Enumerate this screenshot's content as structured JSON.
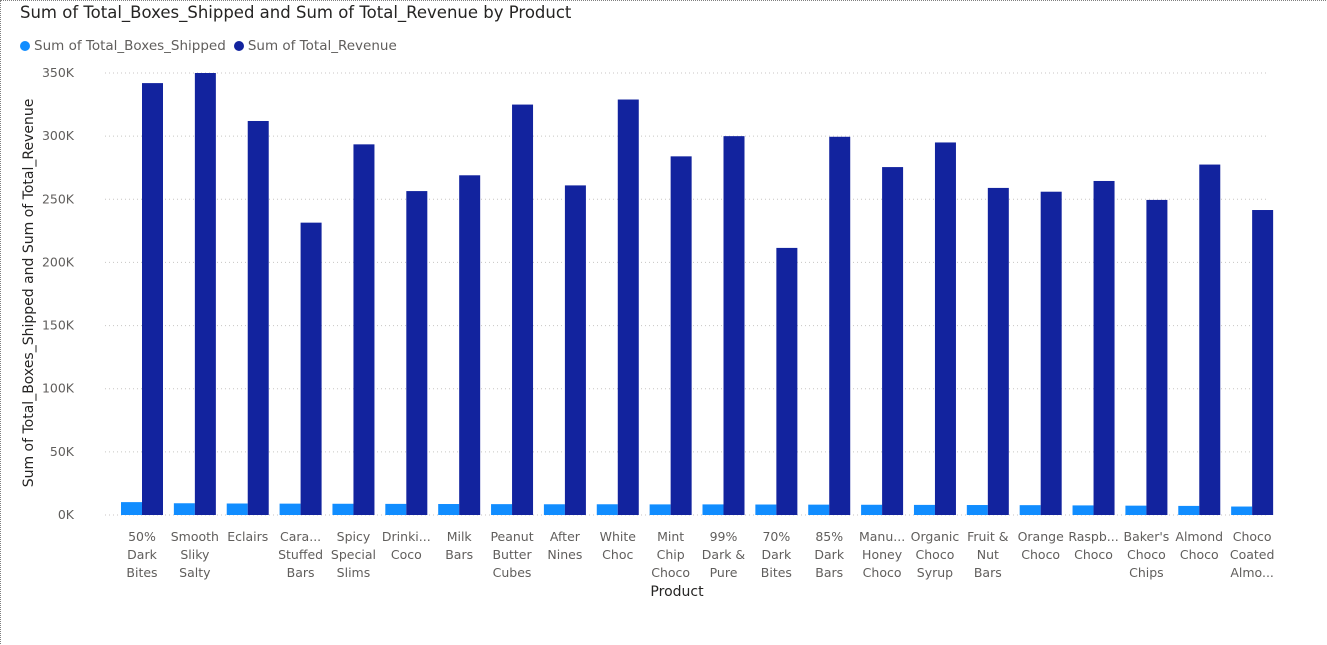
{
  "chart_data": {
    "type": "bar",
    "title": "Sum of Total_Boxes_Shipped and Sum of Total_Revenue by Product",
    "xlabel": "Product",
    "ylabel": "Sum of Total_Boxes_Shipped and Sum of Total_Revenue",
    "ylim": [
      0,
      350000
    ],
    "yticks": [
      0,
      50000,
      100000,
      150000,
      200000,
      250000,
      300000,
      350000
    ],
    "ytick_labels": [
      "0K",
      "50K",
      "100K",
      "150K",
      "200K",
      "250K",
      "300K",
      "350K"
    ],
    "grid": true,
    "legend_position": "top-left",
    "categories": [
      [
        "50%",
        "Dark",
        "Bites"
      ],
      [
        "Smooth",
        "Sliky",
        "Salty"
      ],
      [
        "Eclairs"
      ],
      [
        "Cara...",
        "Stuffed",
        "Bars"
      ],
      [
        "Spicy",
        "Special",
        "Slims"
      ],
      [
        "Drinki...",
        "Coco"
      ],
      [
        "Milk",
        "Bars"
      ],
      [
        "Peanut",
        "Butter",
        "Cubes"
      ],
      [
        "After",
        "Nines"
      ],
      [
        "White",
        "Choc"
      ],
      [
        "Mint",
        "Chip",
        "Choco"
      ],
      [
        "99%",
        "Dark &",
        "Pure"
      ],
      [
        "70%",
        "Dark",
        "Bites"
      ],
      [
        "85%",
        "Dark",
        "Bars"
      ],
      [
        "Manu...",
        "Honey",
        "Choco"
      ],
      [
        "Organic",
        "Choco",
        "Syrup"
      ],
      [
        "Fruit &",
        "Nut",
        "Bars"
      ],
      [
        "Orange",
        "Choco"
      ],
      [
        "Raspb...",
        "Choco"
      ],
      [
        "Baker's",
        "Choco",
        "Chips"
      ],
      [
        "Almond",
        "Choco"
      ],
      [
        "Choco",
        "Coated",
        "Almo..."
      ]
    ],
    "series": [
      {
        "name": "Sum of Total_Boxes_Shipped",
        "color": "#118DFF",
        "values": [
          10200,
          9300,
          9100,
          9000,
          8900,
          8800,
          8700,
          8600,
          8500,
          8500,
          8400,
          8400,
          8300,
          8200,
          8100,
          8000,
          7900,
          7800,
          7600,
          7400,
          7200,
          6700
        ]
      },
      {
        "name": "Sum of Total_Revenue",
        "color": "#12239E",
        "values": [
          342000,
          350000,
          312000,
          231500,
          293500,
          256500,
          269000,
          325000,
          261000,
          329000,
          284000,
          300000,
          211500,
          299500,
          275500,
          295000,
          259000,
          256000,
          264500,
          249500,
          277500,
          241500
        ]
      }
    ]
  }
}
